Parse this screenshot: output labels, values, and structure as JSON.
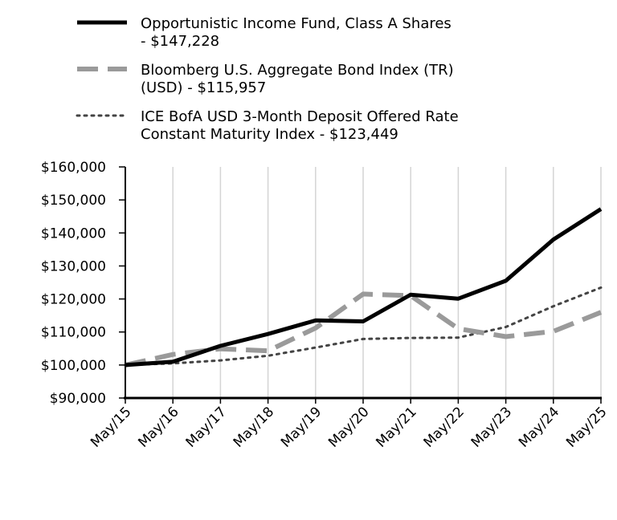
{
  "chart_data": {
    "type": "line",
    "title": "",
    "xlabel": "",
    "ylabel": "",
    "categories": [
      "May/15",
      "May/16",
      "May/17",
      "May/18",
      "May/19",
      "May/20",
      "May/21",
      "May/22",
      "May/23",
      "May/24",
      "May/25"
    ],
    "y_ticks": [
      "$90,000",
      "$100,000",
      "$110,000",
      "$120,000",
      "$130,000",
      "$140,000",
      "$150,000",
      "$160,000"
    ],
    "ylim": [
      90000,
      160000
    ],
    "grid": "vertical",
    "legend_position": "top",
    "series": [
      {
        "name": "Opportunistic Income Fund, Class A Shares - $147,228",
        "legend_lines": [
          "Opportunistic Income Fund, Class A Shares",
          "- $147,228"
        ],
        "style": "solid",
        "color": "#000000",
        "values": [
          100000,
          101000,
          105800,
          109400,
          113500,
          113200,
          121300,
          120100,
          125500,
          138000,
          147228
        ]
      },
      {
        "name": "Bloomberg U.S. Aggregate Bond Index (TR) (USD) - $115,957",
        "legend_lines": [
          "Bloomberg U.S. Aggregate Bond Index (TR)",
          "(USD) - $115,957"
        ],
        "style": "dashed",
        "color": "#9a9a9a",
        "values": [
          100000,
          103200,
          104900,
          104300,
          111200,
          121500,
          121000,
          111000,
          108600,
          110200,
          115957
        ]
      },
      {
        "name": "ICE BofA USD 3-Month Deposit Offered Rate Constant Maturity Index - $123,449",
        "legend_lines": [
          "ICE BofA USD 3-Month Deposit Offered Rate",
          "Constant Maturity Index - $123,449"
        ],
        "style": "dotted",
        "color": "#444444",
        "values": [
          100000,
          100500,
          101400,
          102800,
          105300,
          107900,
          108200,
          108300,
          111500,
          117800,
          123449
        ]
      }
    ]
  }
}
